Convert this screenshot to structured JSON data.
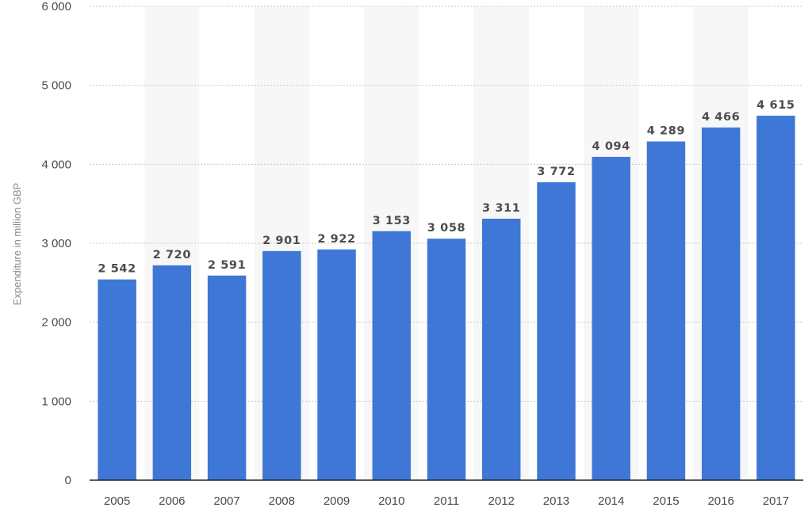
{
  "chart_data": {
    "type": "bar",
    "categories": [
      "2005",
      "2006",
      "2007",
      "2008",
      "2009",
      "2010",
      "2011",
      "2012",
      "2013",
      "2014",
      "2015",
      "2016",
      "2017"
    ],
    "values": [
      2542,
      2720,
      2591,
      2901,
      2922,
      3153,
      3058,
      3311,
      3772,
      4094,
      4289,
      4466,
      4615
    ],
    "value_labels": [
      "2 542",
      "2 720",
      "2 591",
      "2 901",
      "2 922",
      "3 153",
      "3 058",
      "3 311",
      "3 772",
      "4 094",
      "4 289",
      "4 466",
      "4 615"
    ],
    "y_ticks": [
      0,
      1000,
      2000,
      3000,
      4000,
      5000,
      6000
    ],
    "y_tick_labels": [
      "0",
      "1 000",
      "2 000",
      "3 000",
      "4 000",
      "5 000",
      "6 000"
    ],
    "ylabel": "Expenditure in million GBP",
    "ylim": [
      0,
      6000
    ],
    "grid": true,
    "colors": {
      "bar": "#3f77d6",
      "band": "#f7f7f7",
      "grid": "#c8c8c8",
      "axis": "#222222"
    }
  }
}
